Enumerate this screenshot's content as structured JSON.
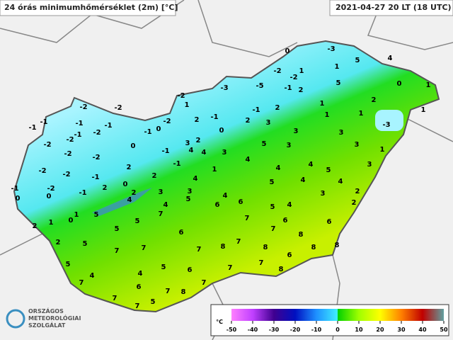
{
  "header": {
    "title": "24 órás minimumhőmérséklet (2m) [°C]",
    "timestamp": "2021-04-27 20 LT (18 UTC)"
  },
  "stations": [
    0,
    -3,
    5,
    4,
    -2,
    1,
    1,
    -2,
    -3,
    -5,
    -1,
    2,
    5,
    0,
    1,
    -2,
    1,
    2,
    1,
    2,
    1,
    -2,
    -2,
    -1,
    -1,
    2,
    3,
    1,
    1,
    -3,
    -1,
    -1,
    -1,
    -1,
    -2,
    -2,
    0,
    -1,
    2,
    0,
    3,
    3,
    -1,
    -2,
    -2,
    0,
    3,
    2,
    5,
    3,
    3,
    1,
    -2,
    -2,
    -1,
    4,
    4,
    3,
    4,
    4,
    -2,
    -2,
    -1,
    2,
    -1,
    1,
    4,
    5,
    3,
    2,
    4,
    5,
    4,
    4,
    -2,
    -1,
    -1,
    2,
    0,
    3,
    3,
    4,
    3,
    2,
    0,
    0,
    2,
    4,
    5,
    4,
    6,
    6,
    5,
    4,
    2,
    1,
    1,
    0,
    5,
    7,
    7,
    6,
    6,
    2,
    5,
    5,
    6,
    7,
    8,
    2,
    5,
    7,
    8,
    7,
    8,
    8,
    8,
    7,
    7,
    5,
    5,
    6,
    7,
    7,
    6,
    4,
    4,
    7,
    8,
    7,
    6,
    7,
    8,
    7,
    7,
    5
  ],
  "legend": {
    "unit": "°C",
    "ticks": [
      -50,
      -40,
      -30,
      -20,
      -10,
      0,
      10,
      20,
      30,
      40,
      50
    ]
  },
  "logo": {
    "lines": [
      "ORSZÁGOS",
      "METEOROLÓGIAI",
      "SZOLGÁLAT"
    ]
  }
}
